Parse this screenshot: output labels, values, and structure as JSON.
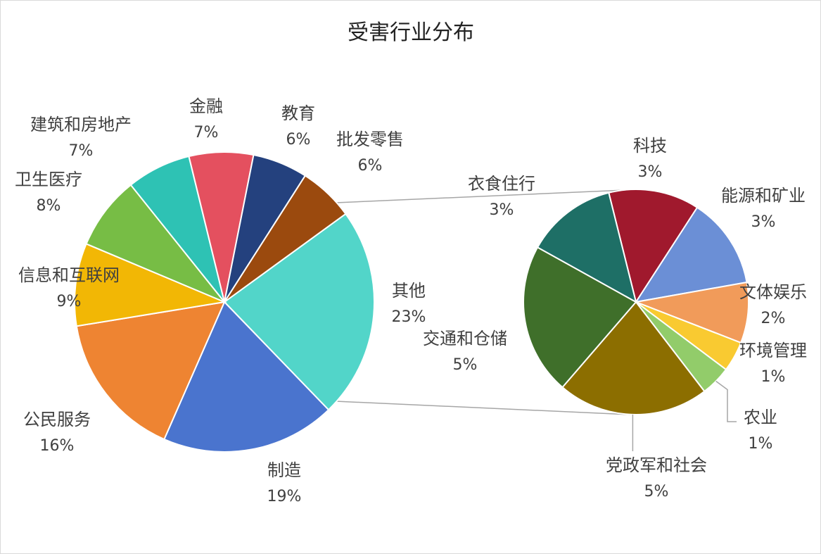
{
  "chart_data": {
    "type": "pie",
    "title": "受害行业分布",
    "variant": "pie-of-pie",
    "main": [
      {
        "label": "其他",
        "value": 23,
        "display": "23%",
        "color": "#52D5C9"
      },
      {
        "label": "制造",
        "value": 19,
        "display": "19%",
        "color": "#4A74CE"
      },
      {
        "label": "公民服务",
        "value": 16,
        "display": "16%",
        "color": "#EE8432"
      },
      {
        "label": "信息和互联网",
        "value": 9,
        "display": "9%",
        "color": "#F2B705"
      },
      {
        "label": "卫生医疗",
        "value": 8,
        "display": "8%",
        "color": "#77BD45"
      },
      {
        "label": "建筑和房地产",
        "value": 7,
        "display": "7%",
        "color": "#2EC2B4"
      },
      {
        "label": "金融",
        "value": 7,
        "display": "7%",
        "color": "#E4505F"
      },
      {
        "label": "教育",
        "value": 6,
        "display": "6%",
        "color": "#24417E"
      },
      {
        "label": "批发零售",
        "value": 6,
        "display": "6%",
        "color": "#9B4A0E"
      }
    ],
    "secondary": [
      {
        "label": "科技",
        "value": 3,
        "display": "3%",
        "color": "#A0192D"
      },
      {
        "label": "能源和矿业",
        "value": 3,
        "display": "3%",
        "color": "#6B8FD6"
      },
      {
        "label": "文体娱乐",
        "value": 2,
        "display": "2%",
        "color": "#F19B5A"
      },
      {
        "label": "环境管理",
        "value": 1,
        "display": "1%",
        "color": "#F9CA31"
      },
      {
        "label": "农业",
        "value": 1,
        "display": "1%",
        "color": "#92CC6A"
      },
      {
        "label": "党政军和社会",
        "value": 5,
        "display": "5%",
        "color": "#8C6E00"
      },
      {
        "label": "交通和仓储",
        "value": 5,
        "display": "5%",
        "color": "#3F6F2A"
      },
      {
        "label": "衣食住行",
        "value": 3,
        "display": "3%",
        "color": "#1E6F66"
      }
    ],
    "connector_color": "#A6A6A6",
    "legend": "none"
  }
}
